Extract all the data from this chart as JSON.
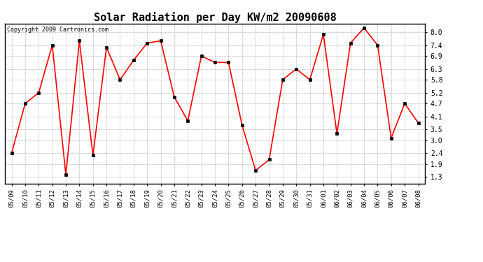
{
  "title": "Solar Radiation per Day KW/m2 20090608",
  "copyright": "Copyright 2009 Cartronics.com",
  "dates": [
    "05/09",
    "05/10",
    "05/11",
    "05/12",
    "05/13",
    "05/14",
    "05/15",
    "05/16",
    "05/17",
    "05/18",
    "05/19",
    "05/20",
    "05/21",
    "05/22",
    "05/23",
    "05/24",
    "05/25",
    "05/26",
    "05/27",
    "05/28",
    "05/29",
    "05/30",
    "05/31",
    "06/01",
    "06/02",
    "06/03",
    "06/04",
    "06/05",
    "06/06",
    "06/07",
    "06/08"
  ],
  "values": [
    2.4,
    4.7,
    5.2,
    7.4,
    1.4,
    7.6,
    2.3,
    7.3,
    5.8,
    6.7,
    7.5,
    7.6,
    5.0,
    3.9,
    6.9,
    6.6,
    6.6,
    3.7,
    1.6,
    2.1,
    5.8,
    6.3,
    5.8,
    7.9,
    3.3,
    7.5,
    8.2,
    7.4,
    3.1,
    4.7,
    3.8
  ],
  "line_color": "#ff0000",
  "marker_color": "#000000",
  "bg_color": "#ffffff",
  "grid_color": "#aaaaaa",
  "yticks": [
    1.3,
    1.9,
    2.4,
    3.0,
    3.5,
    4.1,
    4.7,
    5.2,
    5.8,
    6.3,
    6.9,
    7.4,
    8.0
  ],
  "ylim": [
    1.0,
    8.4
  ],
  "title_fontsize": 11,
  "copyright_fontsize": 6,
  "tick_fontsize": 6.5,
  "ytick_fontsize": 7
}
